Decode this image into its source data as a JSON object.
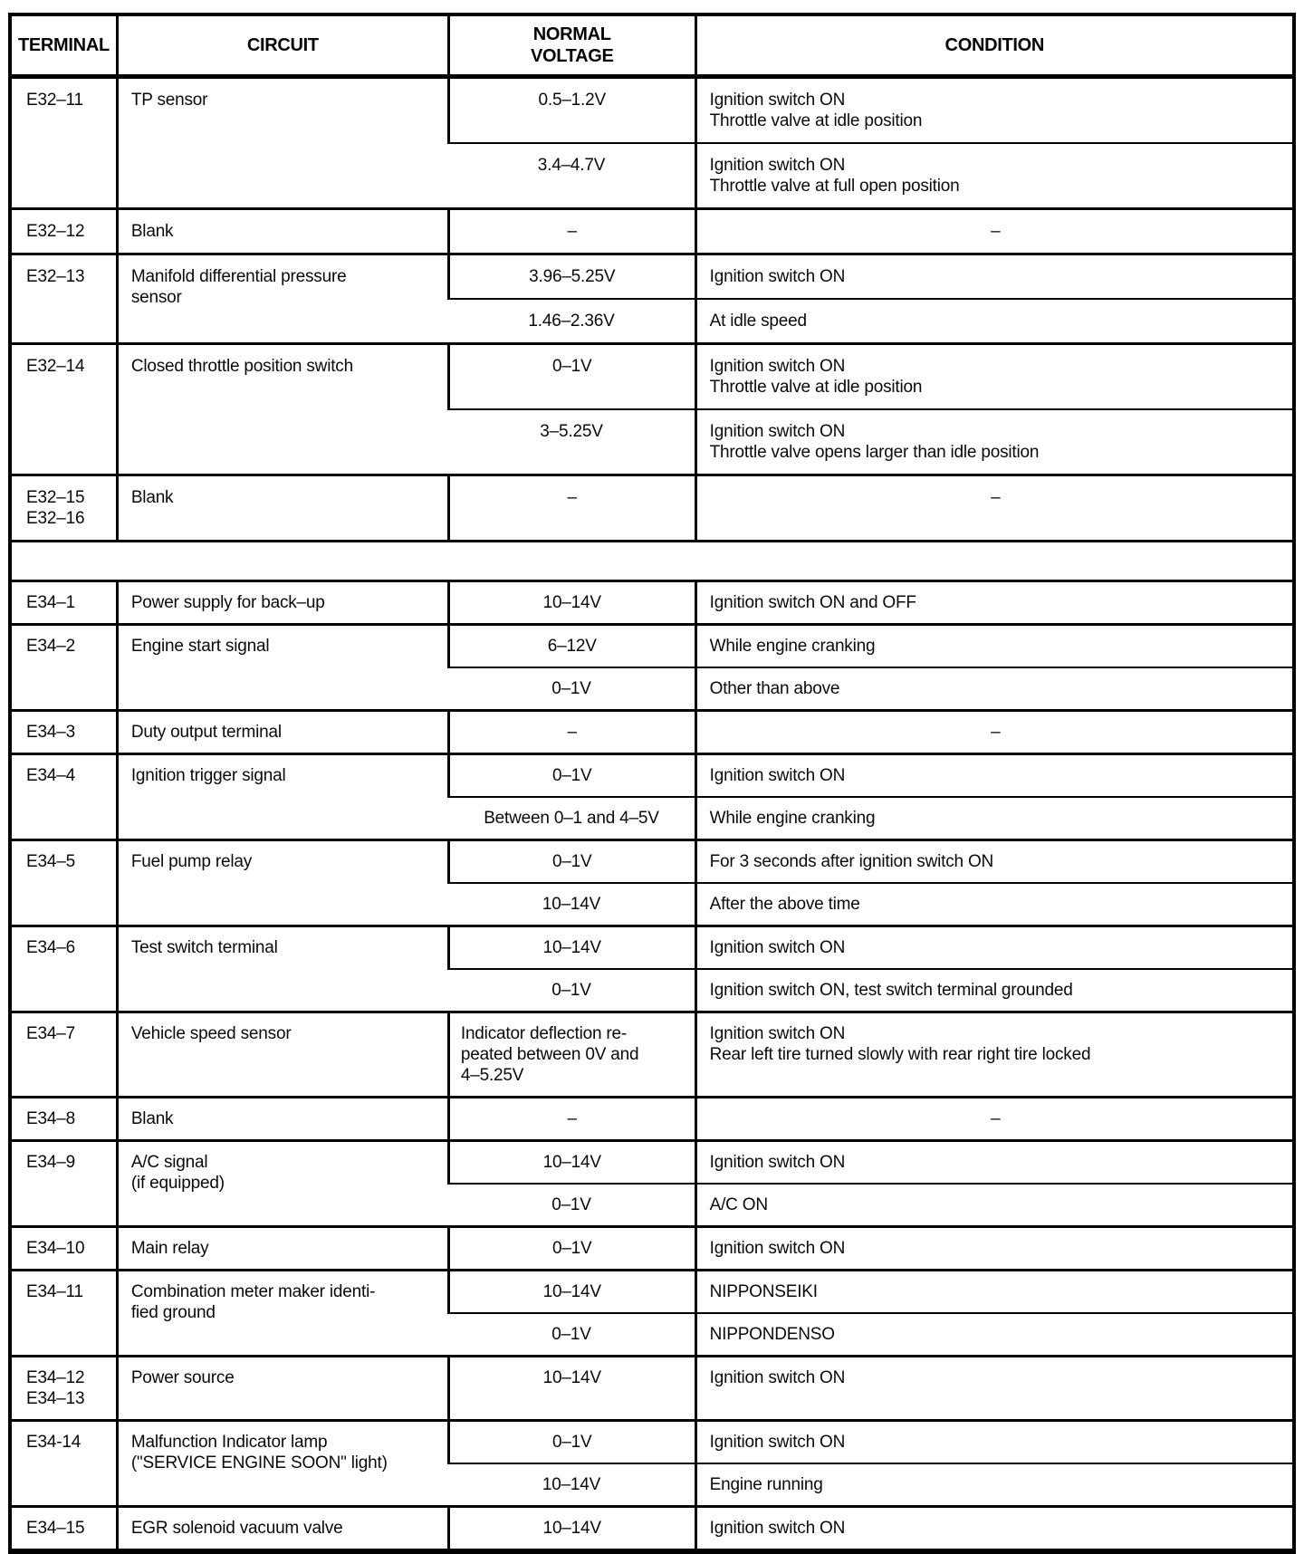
{
  "table": {
    "headers": [
      "TERMINAL",
      "CIRCUIT",
      "NORMAL\nVOLTAGE",
      "CONDITION"
    ],
    "sections": [
      {
        "rows": [
          {
            "terminal": "E32–11",
            "circuit": "TP sensor",
            "entries": [
              {
                "voltage": "0.5–1.2V",
                "condition": "Ignition switch ON\nThrottle valve at idle position"
              },
              {
                "voltage": "3.4–4.7V",
                "condition": "Ignition switch ON\nThrottle valve at full open position"
              }
            ]
          },
          {
            "terminal": "E32–12",
            "circuit": "Blank",
            "entries": [
              {
                "voltage": "–",
                "condition": "–"
              }
            ]
          },
          {
            "terminal": "E32–13",
            "circuit": "Manifold differential pressure\nsensor",
            "entries": [
              {
                "voltage": "3.96–5.25V",
                "condition": "Ignition switch ON"
              },
              {
                "voltage": "1.46–2.36V",
                "condition": "At idle speed"
              }
            ]
          },
          {
            "terminal": "E32–14",
            "circuit": "Closed throttle position switch",
            "entries": [
              {
                "voltage": "0–1V",
                "condition": "Ignition switch ON\nThrottle valve at idle position"
              },
              {
                "voltage": "3–5.25V",
                "condition": "Ignition switch ON\nThrottle valve opens larger than idle position"
              }
            ]
          },
          {
            "terminal": "E32–15\nE32–16",
            "circuit": "Blank",
            "entries": [
              {
                "voltage": "–",
                "condition": "–"
              }
            ]
          }
        ]
      },
      {
        "rows": [
          {
            "terminal": "E34–1",
            "circuit": "Power supply for back–up",
            "entries": [
              {
                "voltage": "10–14V",
                "condition": "Ignition switch ON and OFF"
              }
            ]
          },
          {
            "terminal": "E34–2",
            "circuit": "Engine start signal",
            "entries": [
              {
                "voltage": "6–12V",
                "condition": "While engine cranking"
              },
              {
                "voltage": "0–1V",
                "condition": "Other than above"
              }
            ]
          },
          {
            "terminal": "E34–3",
            "circuit": "Duty output terminal",
            "entries": [
              {
                "voltage": "–",
                "condition": "–"
              }
            ]
          },
          {
            "terminal": "E34–4",
            "circuit": "Ignition trigger signal",
            "entries": [
              {
                "voltage": "0–1V",
                "condition": "Ignition switch ON"
              },
              {
                "voltage": "Between 0–1 and 4–5V",
                "condition": "While engine cranking"
              }
            ]
          },
          {
            "terminal": "E34–5",
            "circuit": "Fuel pump relay",
            "entries": [
              {
                "voltage": "0–1V",
                "condition": "For 3 seconds after ignition switch ON"
              },
              {
                "voltage": "10–14V",
                "condition": "After the above time"
              }
            ]
          },
          {
            "terminal": "E34–6",
            "circuit": "Test switch terminal",
            "entries": [
              {
                "voltage": "10–14V",
                "condition": "Ignition switch ON"
              },
              {
                "voltage": "0–1V",
                "condition": "Ignition switch ON, test switch terminal grounded"
              }
            ]
          },
          {
            "terminal": "E34–7",
            "circuit": "Vehicle speed sensor",
            "entries": [
              {
                "voltage": "Indicator deflection re-\npeated between 0V and\n4–5.25V",
                "condition": "Ignition switch ON\nRear left tire turned slowly with rear right tire locked"
              }
            ]
          },
          {
            "terminal": "E34–8",
            "circuit": "Blank",
            "entries": [
              {
                "voltage": "–",
                "condition": "–"
              }
            ]
          },
          {
            "terminal": "E34–9",
            "circuit": "A/C signal\n(if equipped)",
            "entries": [
              {
                "voltage": "10–14V",
                "condition": "Ignition switch ON"
              },
              {
                "voltage": "0–1V",
                "condition": "A/C ON"
              }
            ]
          },
          {
            "terminal": "E34–10",
            "circuit": "Main relay",
            "entries": [
              {
                "voltage": "0–1V",
                "condition": "Ignition switch ON"
              }
            ]
          },
          {
            "terminal": "E34–11",
            "circuit": "Combination meter maker identi-\nfied ground",
            "entries": [
              {
                "voltage": "10–14V",
                "condition": "NIPPONSEIKI"
              },
              {
                "voltage": "0–1V",
                "condition": "NIPPONDENSO"
              }
            ]
          },
          {
            "terminal": "E34–12\nE34–13",
            "circuit": "Power source",
            "entries": [
              {
                "voltage": "10–14V",
                "condition": "Ignition switch ON"
              }
            ]
          },
          {
            "terminal": "E34-14",
            "circuit": "Malfunction Indicator lamp\n(\"SERVICE ENGINE SOON\" light)",
            "entries": [
              {
                "voltage": "0–1V",
                "condition": "Ignition switch ON"
              },
              {
                "voltage": "10–14V",
                "condition": "Engine running"
              }
            ]
          },
          {
            "terminal": "E34–15",
            "circuit": "EGR solenoid vacuum valve",
            "entries": [
              {
                "voltage": "10–14V",
                "condition": "Ignition switch ON"
              }
            ]
          }
        ]
      }
    ]
  }
}
